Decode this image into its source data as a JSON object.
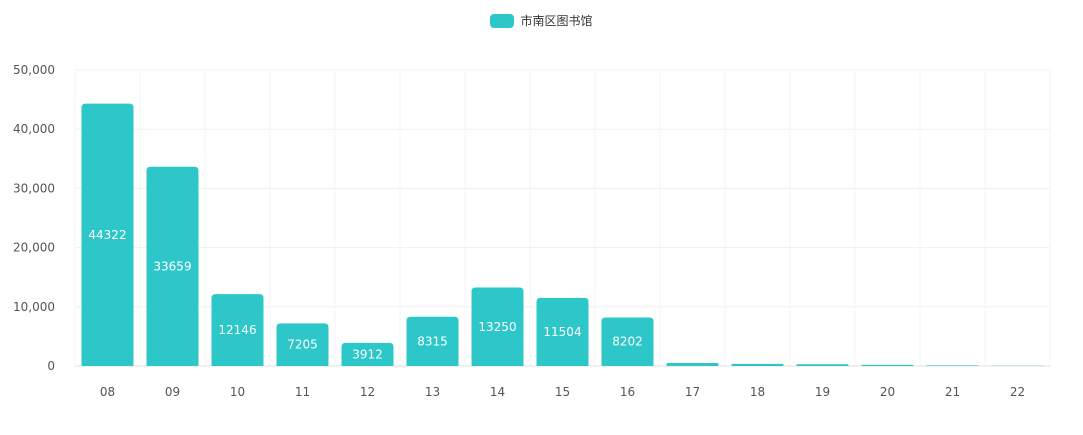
{
  "chart_data": {
    "type": "bar",
    "categories": [
      "08",
      "09",
      "10",
      "11",
      "12",
      "13",
      "14",
      "15",
      "16",
      "17",
      "18",
      "19",
      "20",
      "21",
      "22"
    ],
    "series": [
      {
        "name": "市南区图书馆",
        "color": "#2ec7c9",
        "values": [
          44322,
          33659,
          12146,
          7205,
          3912,
          8315,
          13250,
          11504,
          8202,
          500,
          350,
          300,
          200,
          100,
          50
        ],
        "labels": [
          "44322",
          "33659",
          "12146",
          "7205",
          "3912",
          "8315",
          "13250",
          "11504",
          "8202",
          "",
          "",
          "",
          "",
          "",
          ""
        ]
      }
    ],
    "ylim": [
      0,
      50000
    ],
    "yticks": [
      "0",
      "10,000",
      "20,000",
      "30,000",
      "40,000",
      "50,000"
    ],
    "ytick_values": [
      0,
      10000,
      20000,
      30000,
      40000,
      50000
    ],
    "grid": true,
    "legend": "top-center",
    "title": "",
    "xlabel": "",
    "ylabel": ""
  }
}
